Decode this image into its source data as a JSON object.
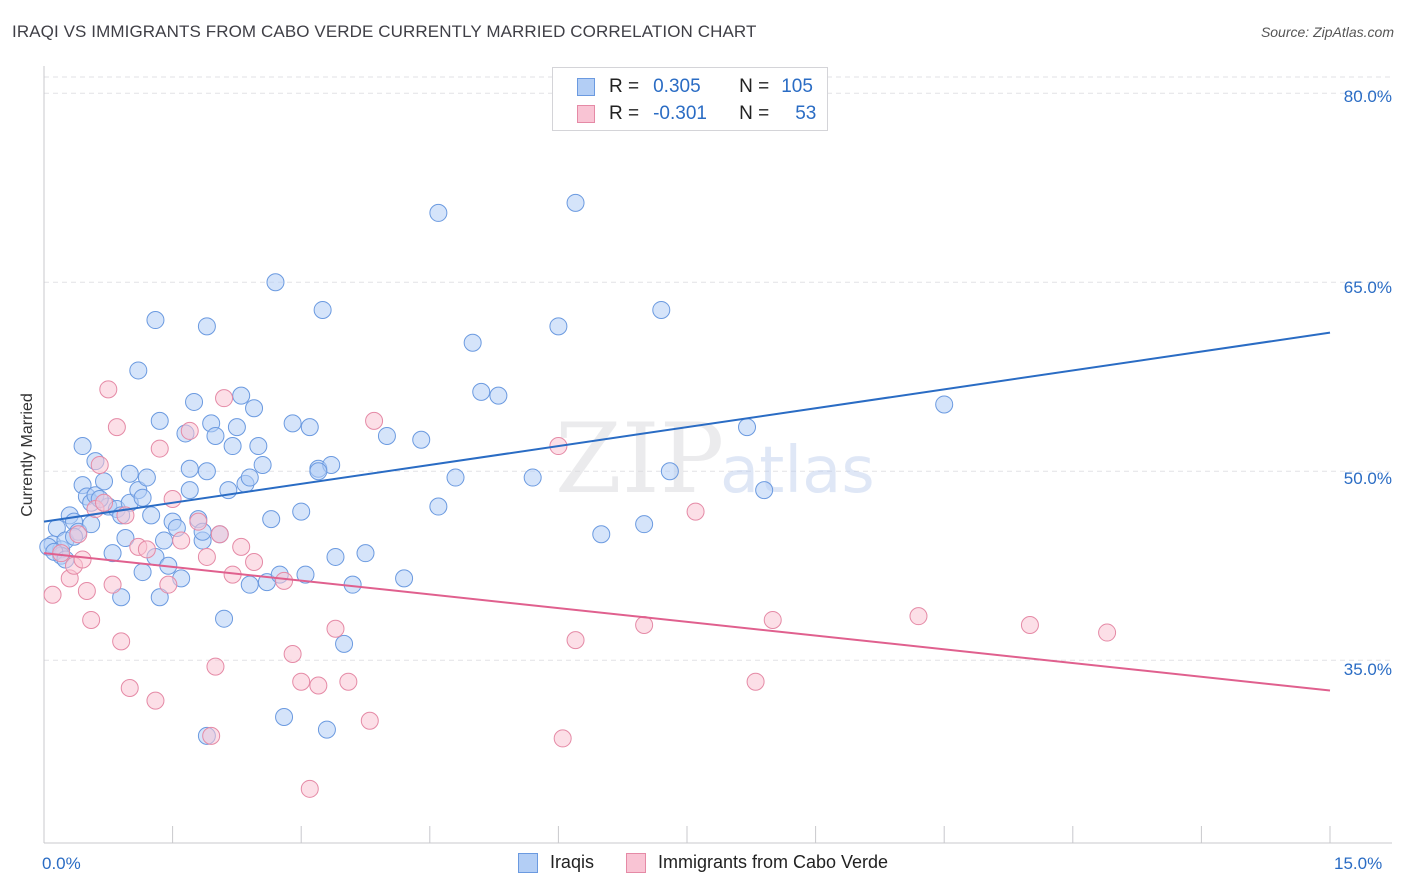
{
  "header": {
    "title": "IRAQI VS IMMIGRANTS FROM CABO VERDE CURRENTLY MARRIED CORRELATION CHART",
    "source": "Source: ZipAtlas.com"
  },
  "watermark": {
    "zip": "ZIP",
    "atlas": "atlas"
  },
  "legend": {
    "rows": [
      {
        "r_label": "R =",
        "r_value": "0.305",
        "n_label": "N =",
        "n_value": "105",
        "fill": "#b3cef5",
        "stroke": "#6b9ae0"
      },
      {
        "r_label": "R =",
        "r_value": "-0.301",
        "n_label": "N =",
        "n_value": "53",
        "fill": "#f9c4d4",
        "stroke": "#e58aa6"
      }
    ]
  },
  "bottom_legend": {
    "items": [
      {
        "label": "Iraqis",
        "fill": "#b3cef5",
        "stroke": "#6b9ae0"
      },
      {
        "label": "Immigrants from Cabo Verde",
        "fill": "#f9c4d4",
        "stroke": "#e58aa6"
      }
    ]
  },
  "axis_labels": {
    "x_min": "0.0%",
    "x_max": "15.0%",
    "y_ticks": [
      "80.0%",
      "65.0%",
      "50.0%",
      "35.0%"
    ]
  },
  "chart_data": {
    "type": "scatter",
    "title": "IRAQI VS IMMIGRANTS FROM CABO VERDE CURRENTLY MARRIED CORRELATION CHART",
    "xlabel": "",
    "ylabel": "Currently Married",
    "xlim": [
      0,
      15
    ],
    "ylim": [
      20.5,
      82
    ],
    "x_tick_values": [
      0,
      15
    ],
    "y_tick_values": [
      80,
      65,
      50,
      35
    ],
    "grid": true,
    "legend_position": "top-center",
    "colors": {
      "iraqis": "#2a6cc4",
      "cabo_verde": "#e0608e",
      "iraqis_fill": "#b3cef5",
      "cabo_verde_fill": "#f9c4d4"
    },
    "series": [
      {
        "name": "Iraqis",
        "trend": {
          "x": [
            0,
            15
          ],
          "y": [
            46.0,
            61.0
          ]
        },
        "points": [
          [
            0.1,
            44.2
          ],
          [
            0.15,
            45.5
          ],
          [
            0.2,
            43.8
          ],
          [
            0.25,
            44.5
          ],
          [
            0.3,
            46.5
          ],
          [
            0.35,
            46.0
          ],
          [
            0.4,
            45.2
          ],
          [
            0.45,
            48.9
          ],
          [
            0.5,
            48.0
          ],
          [
            0.55,
            47.5
          ],
          [
            0.45,
            52.0
          ],
          [
            0.6,
            48.1
          ],
          [
            0.6,
            50.8
          ],
          [
            0.7,
            49.2
          ],
          [
            0.75,
            47.2
          ],
          [
            0.8,
            43.5
          ],
          [
            0.85,
            47.0
          ],
          [
            0.9,
            46.5
          ],
          [
            0.9,
            40.0
          ],
          [
            1.0,
            49.8
          ],
          [
            1.0,
            47.5
          ],
          [
            1.1,
            48.5
          ],
          [
            1.15,
            47.9
          ],
          [
            1.2,
            49.5
          ],
          [
            1.25,
            46.5
          ],
          [
            1.1,
            58.0
          ],
          [
            1.3,
            43.2
          ],
          [
            1.35,
            54.0
          ],
          [
            1.35,
            40.0
          ],
          [
            1.4,
            44.5
          ],
          [
            1.45,
            42.5
          ],
          [
            1.5,
            46.0
          ],
          [
            1.55,
            45.5
          ],
          [
            1.6,
            41.5
          ],
          [
            1.65,
            53.0
          ],
          [
            1.7,
            50.2
          ],
          [
            1.75,
            55.5
          ],
          [
            1.8,
            46.2
          ],
          [
            1.85,
            44.5
          ],
          [
            1.9,
            50.0
          ],
          [
            1.95,
            53.8
          ],
          [
            2.0,
            52.8
          ],
          [
            2.05,
            45.0
          ],
          [
            2.1,
            38.3
          ],
          [
            2.15,
            48.5
          ],
          [
            2.2,
            52.0
          ],
          [
            2.25,
            53.5
          ],
          [
            2.3,
            56.0
          ],
          [
            2.35,
            49.0
          ],
          [
            2.4,
            49.5
          ],
          [
            2.45,
            55.0
          ],
          [
            2.5,
            52.0
          ],
          [
            2.55,
            50.5
          ],
          [
            2.6,
            41.2
          ],
          [
            2.65,
            46.2
          ],
          [
            2.7,
            65.0
          ],
          [
            2.8,
            30.5
          ],
          [
            2.9,
            53.8
          ],
          [
            3.0,
            46.8
          ],
          [
            3.05,
            41.8
          ],
          [
            3.1,
            53.5
          ],
          [
            3.2,
            50.2
          ],
          [
            3.25,
            62.8
          ],
          [
            3.3,
            29.5
          ],
          [
            3.35,
            50.5
          ],
          [
            3.4,
            43.2
          ],
          [
            3.5,
            36.3
          ],
          [
            3.6,
            41.0
          ],
          [
            3.75,
            43.5
          ],
          [
            4.0,
            52.8
          ],
          [
            4.2,
            41.5
          ],
          [
            4.4,
            52.5
          ],
          [
            4.6,
            70.5
          ],
          [
            4.6,
            47.2
          ],
          [
            4.8,
            49.5
          ],
          [
            5.0,
            60.2
          ],
          [
            5.1,
            56.3
          ],
          [
            5.3,
            56.0
          ],
          [
            5.7,
            49.5
          ],
          [
            6.0,
            61.5
          ],
          [
            6.2,
            71.3
          ],
          [
            6.5,
            45.0
          ],
          [
            7.0,
            45.8
          ],
          [
            7.2,
            62.8
          ],
          [
            7.3,
            50.0
          ],
          [
            8.2,
            53.5
          ],
          [
            8.4,
            48.5
          ],
          [
            10.5,
            55.3
          ],
          [
            0.05,
            44.0
          ],
          [
            0.2,
            43.3
          ],
          [
            0.12,
            43.6
          ],
          [
            0.25,
            43.0
          ],
          [
            0.35,
            44.8
          ],
          [
            0.55,
            45.8
          ],
          [
            1.7,
            48.5
          ],
          [
            1.85,
            45.2
          ],
          [
            2.4,
            41.0
          ],
          [
            2.75,
            41.8
          ],
          [
            3.2,
            50.0
          ],
          [
            1.9,
            29.0
          ],
          [
            1.3,
            62.0
          ],
          [
            1.9,
            61.5
          ],
          [
            0.65,
            47.8
          ],
          [
            0.95,
            44.7
          ],
          [
            1.15,
            42.0
          ]
        ]
      },
      {
        "name": "Immigrants from Cabo Verde",
        "trend": {
          "x": [
            0,
            15
          ],
          "y": [
            43.5,
            32.6
          ]
        },
        "points": [
          [
            0.1,
            40.2
          ],
          [
            0.2,
            43.5
          ],
          [
            0.3,
            41.5
          ],
          [
            0.35,
            42.5
          ],
          [
            0.4,
            45.0
          ],
          [
            0.45,
            43.0
          ],
          [
            0.5,
            40.5
          ],
          [
            0.55,
            38.2
          ],
          [
            0.6,
            47.0
          ],
          [
            0.65,
            50.5
          ],
          [
            0.7,
            47.5
          ],
          [
            0.75,
            56.5
          ],
          [
            0.8,
            41.0
          ],
          [
            0.85,
            53.5
          ],
          [
            0.9,
            36.5
          ],
          [
            0.95,
            46.5
          ],
          [
            1.0,
            32.8
          ],
          [
            1.1,
            44.0
          ],
          [
            1.2,
            43.8
          ],
          [
            1.3,
            31.8
          ],
          [
            1.35,
            51.8
          ],
          [
            1.45,
            41.0
          ],
          [
            1.5,
            47.8
          ],
          [
            1.6,
            44.5
          ],
          [
            1.7,
            53.2
          ],
          [
            1.8,
            46.0
          ],
          [
            1.9,
            43.2
          ],
          [
            2.0,
            34.5
          ],
          [
            2.05,
            45.0
          ],
          [
            2.1,
            55.8
          ],
          [
            2.2,
            41.8
          ],
          [
            2.3,
            44.0
          ],
          [
            2.45,
            42.8
          ],
          [
            2.8,
            41.3
          ],
          [
            2.9,
            35.5
          ],
          [
            3.0,
            33.3
          ],
          [
            3.1,
            24.8
          ],
          [
            3.2,
            33.0
          ],
          [
            3.4,
            37.5
          ],
          [
            3.55,
            33.3
          ],
          [
            3.8,
            30.2
          ],
          [
            3.85,
            54.0
          ],
          [
            6.0,
            52.0
          ],
          [
            6.2,
            36.6
          ],
          [
            7.0,
            37.8
          ],
          [
            7.6,
            46.8
          ],
          [
            8.3,
            33.3
          ],
          [
            8.5,
            38.2
          ],
          [
            10.2,
            38.5
          ],
          [
            11.5,
            37.8
          ],
          [
            12.4,
            37.2
          ],
          [
            6.05,
            28.8
          ],
          [
            1.95,
            29.0
          ]
        ]
      }
    ]
  }
}
